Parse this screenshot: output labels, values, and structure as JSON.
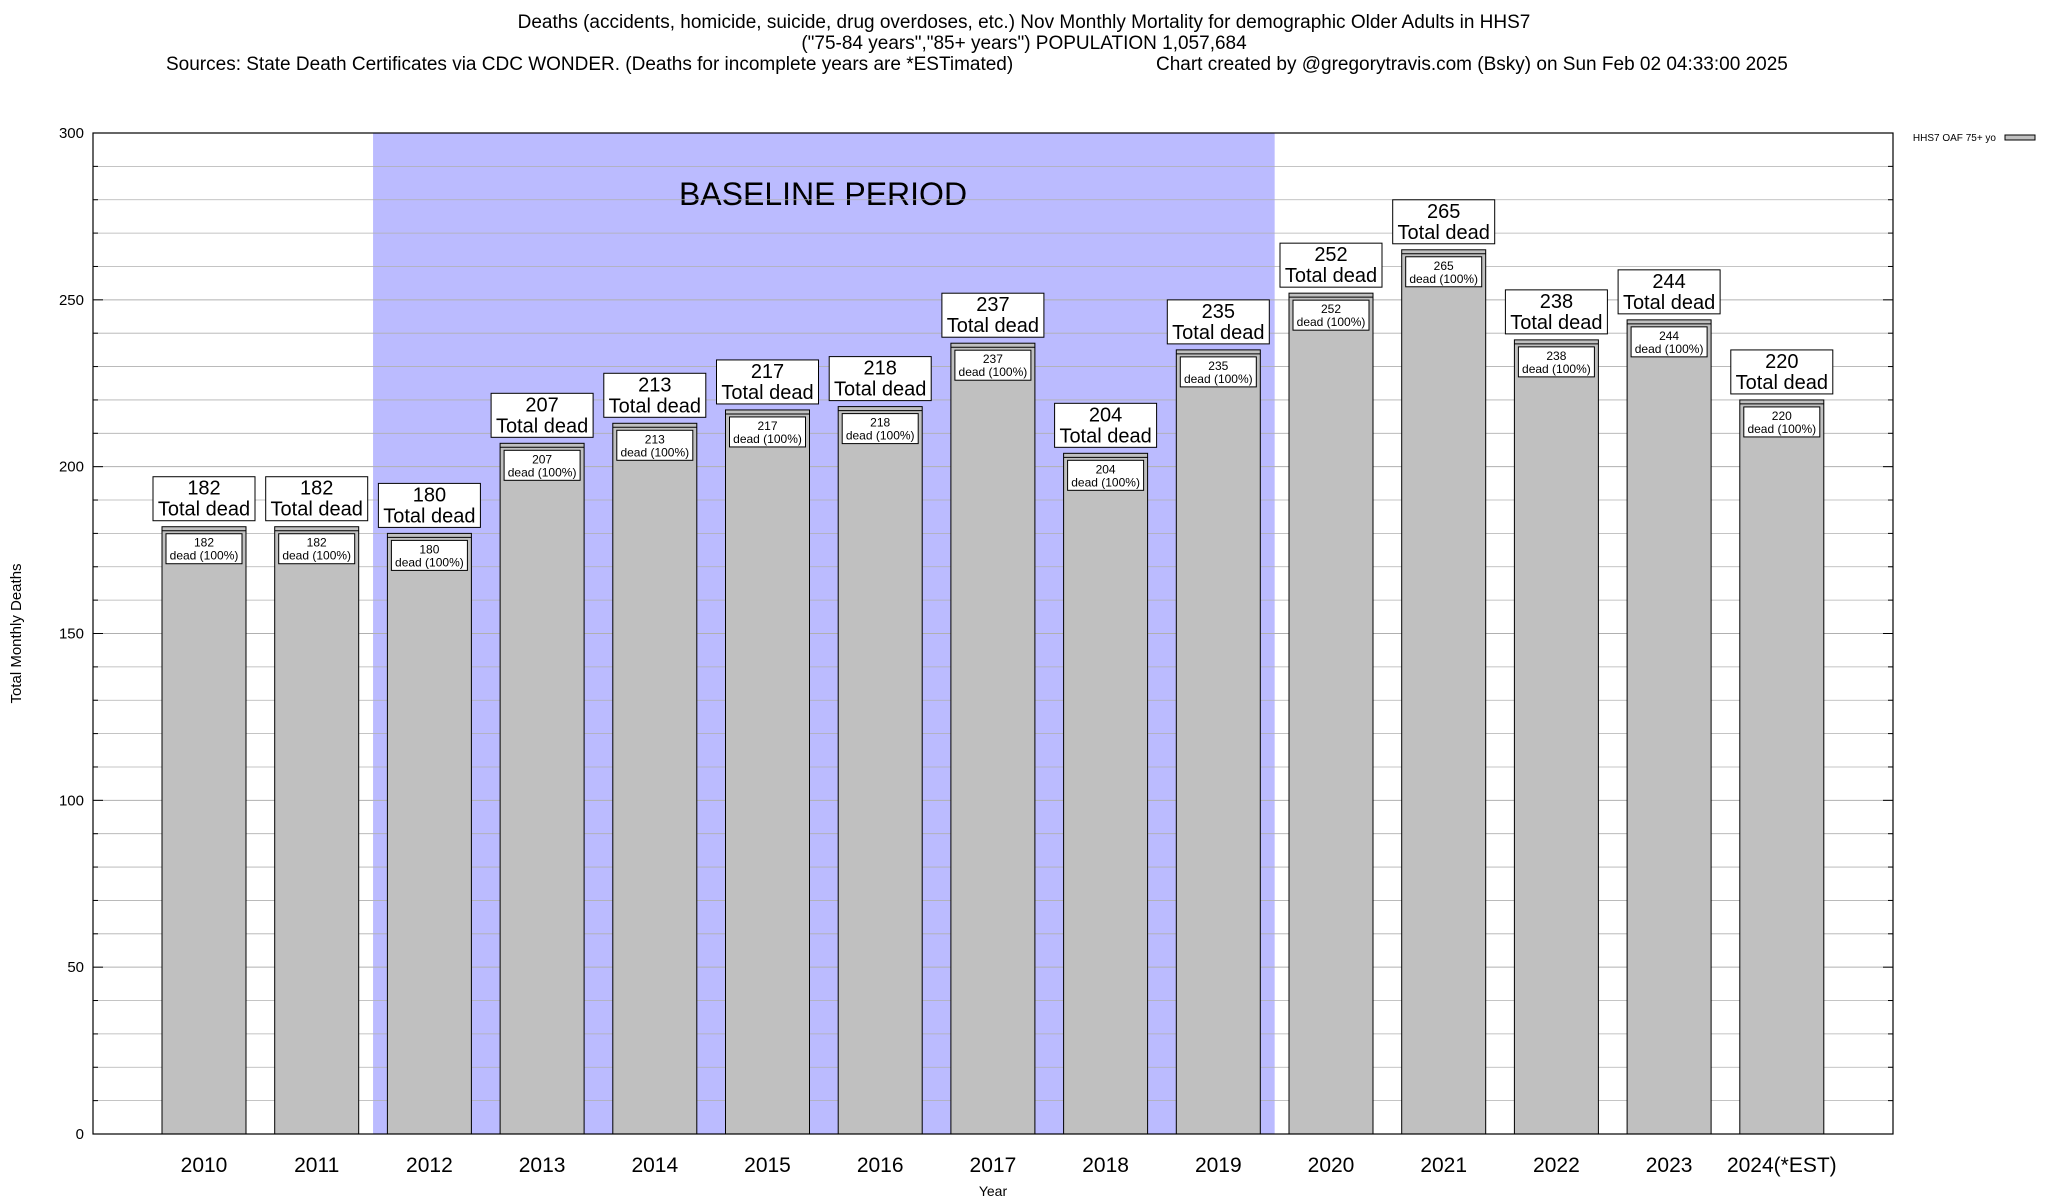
{
  "title": {
    "line1": "Deaths (accidents, homicide, suicide, drug overdoses, etc.) Nov Monthly Mortality for demographic Older Adults in HHS7",
    "line2": "(\"75-84 years\",\"85+ years\") POPULATION 1,057,684",
    "line3_left": "Sources: State Death Certificates via CDC WONDER. (Deaths for incomplete years are *ESTimated)",
    "line3_right": "Chart created by @gregorytravis.com (Bsky) on Sun Feb 02 04:33:00 2025"
  },
  "colors": {
    "bar_fill": "#c0c0c0",
    "bar_stroke": "#000000",
    "baseline_fill": "#bbbbff",
    "grid": "#b0b0b0"
  },
  "chart_data": {
    "type": "bar",
    "xlabel": "Year",
    "ylabel": "Total Monthly Deaths",
    "ylim": [
      0,
      300
    ],
    "yticks": [
      0,
      50,
      100,
      150,
      200,
      250,
      300
    ],
    "grid": true,
    "legend_position": "top-right",
    "categories": [
      "2010",
      "2011",
      "2012",
      "2013",
      "2014",
      "2015",
      "2016",
      "2017",
      "2018",
      "2019",
      "2020",
      "2021",
      "2022",
      "2023",
      "2024(*EST)"
    ],
    "series": [
      {
        "name": "HHS7 OAF 75+ yo",
        "values": [
          182,
          182,
          180,
          207,
          213,
          217,
          218,
          237,
          204,
          235,
          252,
          265,
          238,
          244,
          220
        ]
      }
    ],
    "top_label_suffix": "Total dead",
    "inner_label_suffix": "dead (100%)",
    "annotations": [
      {
        "text": "BASELINE PERIOD",
        "x_start": "2012",
        "x_end": "2019"
      }
    ]
  }
}
